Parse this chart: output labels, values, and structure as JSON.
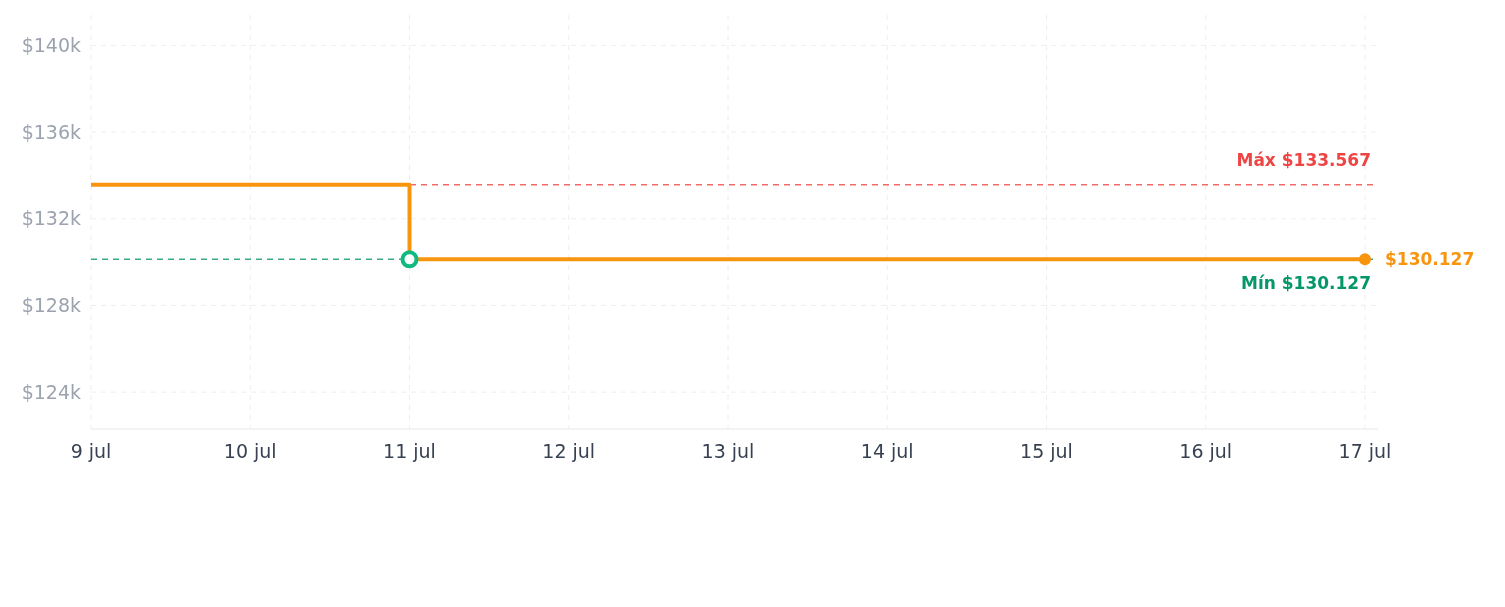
{
  "chart_data": {
    "type": "step",
    "series": [
      {
        "color": "#f7950f",
        "x": [
          "--07-09",
          "--07-11",
          "--07-17"
        ],
        "values": [
          133567,
          130127,
          130127
        ]
      },
      {
        "type": "scatter",
        "color": "#10b981",
        "marker": "circle",
        "x": [
          "--07-11"
        ],
        "values": [
          130127
        ]
      },
      {
        "type": "scatter",
        "color": "#f7950f",
        "marker": "circle",
        "x": [
          "--07-17"
        ],
        "values": [
          130127
        ],
        "value_labels": [
          "$130.127"
        ]
      }
    ],
    "xlim": [
      "--07-09",
      "--07-17"
    ],
    "xticks": [
      {
        "value": "--07-09",
        "label": "9 jul"
      },
      {
        "value": "--07-10",
        "label": "10 jul"
      },
      {
        "value": "--07-11",
        "label": "11 jul"
      },
      {
        "value": "--07-12",
        "label": "12 jul"
      },
      {
        "value": "--07-13",
        "label": "13 jul"
      },
      {
        "value": "--07-14",
        "label": "14 jul"
      },
      {
        "value": "--07-15",
        "label": "15 jul"
      },
      {
        "value": "--07-16",
        "label": "16 jul"
      },
      {
        "value": "--07-17",
        "label": "17 jul"
      }
    ],
    "ylim": [
      122300,
      141400
    ],
    "yticks": [
      {
        "value": 124000,
        "label": "$124k"
      },
      {
        "value": 128000,
        "label": "$128k"
      },
      {
        "value": 132000,
        "label": "$132k"
      },
      {
        "value": 136000,
        "label": "$136k"
      },
      {
        "value": 140000,
        "label": "$140k"
      }
    ],
    "ref_lines": [
      {
        "axis": "y",
        "value": 133567,
        "label": "Máx $133.567",
        "color": "#ef4444",
        "line_style": "dashed"
      },
      {
        "axis": "y",
        "value": 130127,
        "label": "Mín $130.127",
        "color": "#059669",
        "line_style": "dashed"
      }
    ],
    "grid": true
  }
}
